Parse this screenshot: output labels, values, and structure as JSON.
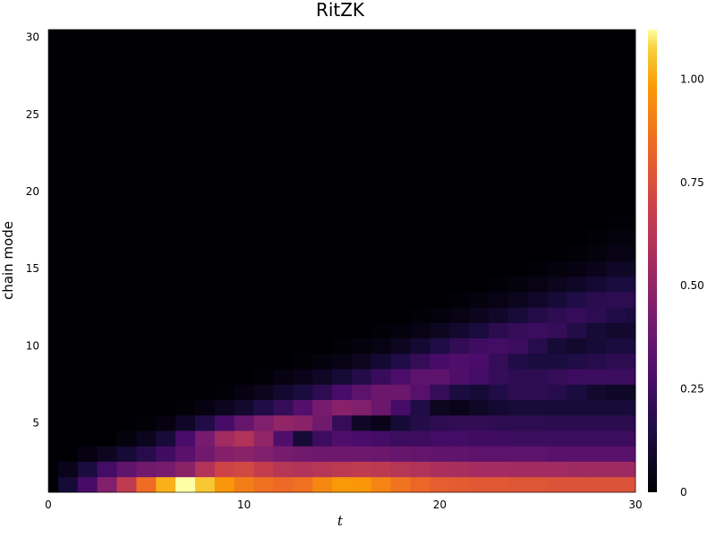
{
  "chart_data": {
    "type": "heatmap",
    "title": "RitZK",
    "xlabel": "t",
    "ylabel": "chain mode",
    "xlim": [
      0,
      30
    ],
    "ylim": [
      0.5,
      30.5
    ],
    "x_ticks": [
      0,
      10,
      20,
      30
    ],
    "y_ticks": [
      5,
      10,
      15,
      20,
      25,
      30
    ],
    "colorbar": {
      "colormap": "inferno",
      "range": [
        0,
        1.12
      ],
      "ticks": [
        0,
        0.25,
        0.5,
        0.75,
        1.0
      ],
      "tick_labels": [
        "0",
        "0.25",
        "0.50",
        "0.75",
        "1.00"
      ]
    },
    "x": [
      0,
      1,
      2,
      3,
      4,
      5,
      6,
      7,
      8,
      9,
      10,
      11,
      12,
      13,
      14,
      15,
      16,
      17,
      18,
      19,
      20,
      21,
      22,
      23,
      24,
      25,
      26,
      27,
      28,
      29,
      30
    ],
    "y_modes": [
      1,
      2,
      3,
      4,
      5,
      6,
      7,
      8,
      9,
      10,
      11,
      12,
      13,
      14,
      15,
      16,
      17,
      18,
      19,
      20,
      21,
      22,
      23,
      24,
      25,
      26,
      27,
      28,
      29,
      30
    ],
    "z_rows_by_mode": [
      [
        0.0,
        0.12,
        0.27,
        0.45,
        0.65,
        0.85,
        1.02,
        1.12,
        1.06,
        0.97,
        0.9,
        0.86,
        0.84,
        0.86,
        0.93,
        0.98,
        0.97,
        0.92,
        0.87,
        0.83,
        0.8,
        0.79,
        0.78,
        0.78,
        0.77,
        0.77,
        0.76,
        0.76,
        0.76,
        0.76,
        0.76
      ],
      [
        0.0,
        0.05,
        0.14,
        0.26,
        0.35,
        0.4,
        0.42,
        0.48,
        0.6,
        0.7,
        0.72,
        0.66,
        0.62,
        0.6,
        0.62,
        0.64,
        0.65,
        0.64,
        0.62,
        0.6,
        0.58,
        0.57,
        0.56,
        0.56,
        0.55,
        0.55,
        0.55,
        0.54,
        0.54,
        0.54,
        0.54
      ],
      [
        0.0,
        0.0,
        0.03,
        0.07,
        0.12,
        0.18,
        0.25,
        0.33,
        0.4,
        0.46,
        0.48,
        0.45,
        0.42,
        0.4,
        0.39,
        0.39,
        0.39,
        0.38,
        0.37,
        0.36,
        0.35,
        0.35,
        0.34,
        0.34,
        0.34,
        0.34,
        0.33,
        0.33,
        0.33,
        0.33,
        0.33
      ],
      [
        0.0,
        0.0,
        0.0,
        0.0,
        0.02,
        0.06,
        0.13,
        0.28,
        0.42,
        0.55,
        0.6,
        0.5,
        0.3,
        0.12,
        0.24,
        0.3,
        0.28,
        0.26,
        0.24,
        0.24,
        0.26,
        0.26,
        0.25,
        0.25,
        0.24,
        0.24,
        0.24,
        0.24,
        0.24,
        0.24,
        0.24
      ],
      [
        0.0,
        0.0,
        0.0,
        0.0,
        0.0,
        0.01,
        0.03,
        0.08,
        0.16,
        0.27,
        0.37,
        0.45,
        0.5,
        0.48,
        0.4,
        0.22,
        0.08,
        0.05,
        0.12,
        0.17,
        0.2,
        0.21,
        0.21,
        0.2,
        0.2,
        0.2,
        0.19,
        0.19,
        0.19,
        0.19,
        0.19
      ],
      [
        0.0,
        0.0,
        0.0,
        0.0,
        0.0,
        0.0,
        0.0,
        0.01,
        0.03,
        0.06,
        0.1,
        0.16,
        0.22,
        0.31,
        0.42,
        0.47,
        0.45,
        0.38,
        0.27,
        0.16,
        0.07,
        0.05,
        0.08,
        0.11,
        0.13,
        0.13,
        0.13,
        0.13,
        0.13,
        0.13,
        0.13
      ],
      [
        0.0,
        0.0,
        0.0,
        0.0,
        0.0,
        0.0,
        0.0,
        0.0,
        0.0,
        0.01,
        0.03,
        0.06,
        0.1,
        0.14,
        0.2,
        0.28,
        0.34,
        0.38,
        0.38,
        0.32,
        0.22,
        0.14,
        0.12,
        0.16,
        0.2,
        0.2,
        0.18,
        0.14,
        0.1,
        0.08,
        0.08
      ],
      [
        0.0,
        0.0,
        0.0,
        0.0,
        0.0,
        0.0,
        0.0,
        0.0,
        0.0,
        0.0,
        0.0,
        0.01,
        0.03,
        0.05,
        0.08,
        0.12,
        0.17,
        0.23,
        0.29,
        0.34,
        0.34,
        0.3,
        0.26,
        0.22,
        0.2,
        0.2,
        0.22,
        0.24,
        0.24,
        0.24,
        0.24
      ],
      [
        0.0,
        0.0,
        0.0,
        0.0,
        0.0,
        0.0,
        0.0,
        0.0,
        0.0,
        0.0,
        0.0,
        0.0,
        0.0,
        0.01,
        0.02,
        0.04,
        0.07,
        0.11,
        0.16,
        0.22,
        0.27,
        0.3,
        0.28,
        0.22,
        0.16,
        0.14,
        0.14,
        0.16,
        0.18,
        0.2,
        0.2
      ],
      [
        0.0,
        0.0,
        0.0,
        0.0,
        0.0,
        0.0,
        0.0,
        0.0,
        0.0,
        0.0,
        0.0,
        0.0,
        0.0,
        0.0,
        0.0,
        0.01,
        0.02,
        0.04,
        0.07,
        0.11,
        0.16,
        0.21,
        0.25,
        0.26,
        0.24,
        0.18,
        0.12,
        0.1,
        0.12,
        0.14,
        0.14
      ],
      [
        0.0,
        0.0,
        0.0,
        0.0,
        0.0,
        0.0,
        0.0,
        0.0,
        0.0,
        0.0,
        0.0,
        0.0,
        0.0,
        0.0,
        0.0,
        0.0,
        0.0,
        0.01,
        0.02,
        0.04,
        0.07,
        0.1,
        0.14,
        0.19,
        0.22,
        0.24,
        0.22,
        0.17,
        0.12,
        0.1,
        0.1
      ],
      [
        0.0,
        0.0,
        0.0,
        0.0,
        0.0,
        0.0,
        0.0,
        0.0,
        0.0,
        0.0,
        0.0,
        0.0,
        0.0,
        0.0,
        0.0,
        0.0,
        0.0,
        0.0,
        0.0,
        0.01,
        0.02,
        0.04,
        0.06,
        0.09,
        0.13,
        0.17,
        0.2,
        0.22,
        0.2,
        0.16,
        0.14
      ],
      [
        0.0,
        0.0,
        0.0,
        0.0,
        0.0,
        0.0,
        0.0,
        0.0,
        0.0,
        0.0,
        0.0,
        0.0,
        0.0,
        0.0,
        0.0,
        0.0,
        0.0,
        0.0,
        0.0,
        0.0,
        0.0,
        0.01,
        0.02,
        0.04,
        0.06,
        0.09,
        0.12,
        0.16,
        0.19,
        0.2,
        0.2
      ],
      [
        0.0,
        0.0,
        0.0,
        0.0,
        0.0,
        0.0,
        0.0,
        0.0,
        0.0,
        0.0,
        0.0,
        0.0,
        0.0,
        0.0,
        0.0,
        0.0,
        0.0,
        0.0,
        0.0,
        0.0,
        0.0,
        0.0,
        0.0,
        0.01,
        0.02,
        0.04,
        0.06,
        0.08,
        0.11,
        0.14,
        0.14
      ],
      [
        0.0,
        0.0,
        0.0,
        0.0,
        0.0,
        0.0,
        0.0,
        0.0,
        0.0,
        0.0,
        0.0,
        0.0,
        0.0,
        0.0,
        0.0,
        0.0,
        0.0,
        0.0,
        0.0,
        0.0,
        0.0,
        0.0,
        0.0,
        0.0,
        0.0,
        0.01,
        0.02,
        0.03,
        0.05,
        0.08,
        0.08
      ],
      [
        0.0,
        0.0,
        0.0,
        0.0,
        0.0,
        0.0,
        0.0,
        0.0,
        0.0,
        0.0,
        0.0,
        0.0,
        0.0,
        0.0,
        0.0,
        0.0,
        0.0,
        0.0,
        0.0,
        0.0,
        0.0,
        0.0,
        0.0,
        0.0,
        0.0,
        0.0,
        0.0,
        0.01,
        0.02,
        0.04,
        0.04
      ],
      [
        0.0,
        0.0,
        0.0,
        0.0,
        0.0,
        0.0,
        0.0,
        0.0,
        0.0,
        0.0,
        0.0,
        0.0,
        0.0,
        0.0,
        0.0,
        0.0,
        0.0,
        0.0,
        0.0,
        0.0,
        0.0,
        0.0,
        0.0,
        0.0,
        0.0,
        0.0,
        0.0,
        0.0,
        0.01,
        0.02,
        0.02
      ],
      [
        0.0,
        0.0,
        0.0,
        0.0,
        0.0,
        0.0,
        0.0,
        0.0,
        0.0,
        0.0,
        0.0,
        0.0,
        0.0,
        0.0,
        0.0,
        0.0,
        0.0,
        0.0,
        0.0,
        0.0,
        0.0,
        0.0,
        0.0,
        0.0,
        0.0,
        0.0,
        0.0,
        0.0,
        0.0,
        0.01,
        0.01
      ],
      [
        0.0,
        0.0,
        0.0,
        0.0,
        0.0,
        0.0,
        0.0,
        0.0,
        0.0,
        0.0,
        0.0,
        0.0,
        0.0,
        0.0,
        0.0,
        0.0,
        0.0,
        0.0,
        0.0,
        0.0,
        0.0,
        0.0,
        0.0,
        0.0,
        0.0,
        0.0,
        0.0,
        0.0,
        0.0,
        0.0,
        0.0
      ],
      [
        0.0,
        0.0,
        0.0,
        0.0,
        0.0,
        0.0,
        0.0,
        0.0,
        0.0,
        0.0,
        0.0,
        0.0,
        0.0,
        0.0,
        0.0,
        0.0,
        0.0,
        0.0,
        0.0,
        0.0,
        0.0,
        0.0,
        0.0,
        0.0,
        0.0,
        0.0,
        0.0,
        0.0,
        0.0,
        0.0,
        0.0
      ],
      [
        0.0,
        0.0,
        0.0,
        0.0,
        0.0,
        0.0,
        0.0,
        0.0,
        0.0,
        0.0,
        0.0,
        0.0,
        0.0,
        0.0,
        0.0,
        0.0,
        0.0,
        0.0,
        0.0,
        0.0,
        0.0,
        0.0,
        0.0,
        0.0,
        0.0,
        0.0,
        0.0,
        0.0,
        0.0,
        0.0,
        0.0
      ],
      [
        0.0,
        0.0,
        0.0,
        0.0,
        0.0,
        0.0,
        0.0,
        0.0,
        0.0,
        0.0,
        0.0,
        0.0,
        0.0,
        0.0,
        0.0,
        0.0,
        0.0,
        0.0,
        0.0,
        0.0,
        0.0,
        0.0,
        0.0,
        0.0,
        0.0,
        0.0,
        0.0,
        0.0,
        0.0,
        0.0,
        0.0
      ],
      [
        0.0,
        0.0,
        0.0,
        0.0,
        0.0,
        0.0,
        0.0,
        0.0,
        0.0,
        0.0,
        0.0,
        0.0,
        0.0,
        0.0,
        0.0,
        0.0,
        0.0,
        0.0,
        0.0,
        0.0,
        0.0,
        0.0,
        0.0,
        0.0,
        0.0,
        0.0,
        0.0,
        0.0,
        0.0,
        0.0,
        0.0
      ],
      [
        0.0,
        0.0,
        0.0,
        0.0,
        0.0,
        0.0,
        0.0,
        0.0,
        0.0,
        0.0,
        0.0,
        0.0,
        0.0,
        0.0,
        0.0,
        0.0,
        0.0,
        0.0,
        0.0,
        0.0,
        0.0,
        0.0,
        0.0,
        0.0,
        0.0,
        0.0,
        0.0,
        0.0,
        0.0,
        0.0,
        0.0
      ],
      [
        0.0,
        0.0,
        0.0,
        0.0,
        0.0,
        0.0,
        0.0,
        0.0,
        0.0,
        0.0,
        0.0,
        0.0,
        0.0,
        0.0,
        0.0,
        0.0,
        0.0,
        0.0,
        0.0,
        0.0,
        0.0,
        0.0,
        0.0,
        0.0,
        0.0,
        0.0,
        0.0,
        0.0,
        0.0,
        0.0,
        0.0
      ],
      [
        0.0,
        0.0,
        0.0,
        0.0,
        0.0,
        0.0,
        0.0,
        0.0,
        0.0,
        0.0,
        0.0,
        0.0,
        0.0,
        0.0,
        0.0,
        0.0,
        0.0,
        0.0,
        0.0,
        0.0,
        0.0,
        0.0,
        0.0,
        0.0,
        0.0,
        0.0,
        0.0,
        0.0,
        0.0,
        0.0,
        0.0
      ],
      [
        0.0,
        0.0,
        0.0,
        0.0,
        0.0,
        0.0,
        0.0,
        0.0,
        0.0,
        0.0,
        0.0,
        0.0,
        0.0,
        0.0,
        0.0,
        0.0,
        0.0,
        0.0,
        0.0,
        0.0,
        0.0,
        0.0,
        0.0,
        0.0,
        0.0,
        0.0,
        0.0,
        0.0,
        0.0,
        0.0,
        0.0
      ],
      [
        0.0,
        0.0,
        0.0,
        0.0,
        0.0,
        0.0,
        0.0,
        0.0,
        0.0,
        0.0,
        0.0,
        0.0,
        0.0,
        0.0,
        0.0,
        0.0,
        0.0,
        0.0,
        0.0,
        0.0,
        0.0,
        0.0,
        0.0,
        0.0,
        0.0,
        0.0,
        0.0,
        0.0,
        0.0,
        0.0,
        0.0
      ],
      [
        0.0,
        0.0,
        0.0,
        0.0,
        0.0,
        0.0,
        0.0,
        0.0,
        0.0,
        0.0,
        0.0,
        0.0,
        0.0,
        0.0,
        0.0,
        0.0,
        0.0,
        0.0,
        0.0,
        0.0,
        0.0,
        0.0,
        0.0,
        0.0,
        0.0,
        0.0,
        0.0,
        0.0,
        0.0,
        0.0,
        0.0
      ],
      [
        0.0,
        0.0,
        0.0,
        0.0,
        0.0,
        0.0,
        0.0,
        0.0,
        0.0,
        0.0,
        0.0,
        0.0,
        0.0,
        0.0,
        0.0,
        0.0,
        0.0,
        0.0,
        0.0,
        0.0,
        0.0,
        0.0,
        0.0,
        0.0,
        0.0,
        0.0,
        0.0,
        0.0,
        0.0,
        0.0,
        0.0
      ]
    ]
  }
}
